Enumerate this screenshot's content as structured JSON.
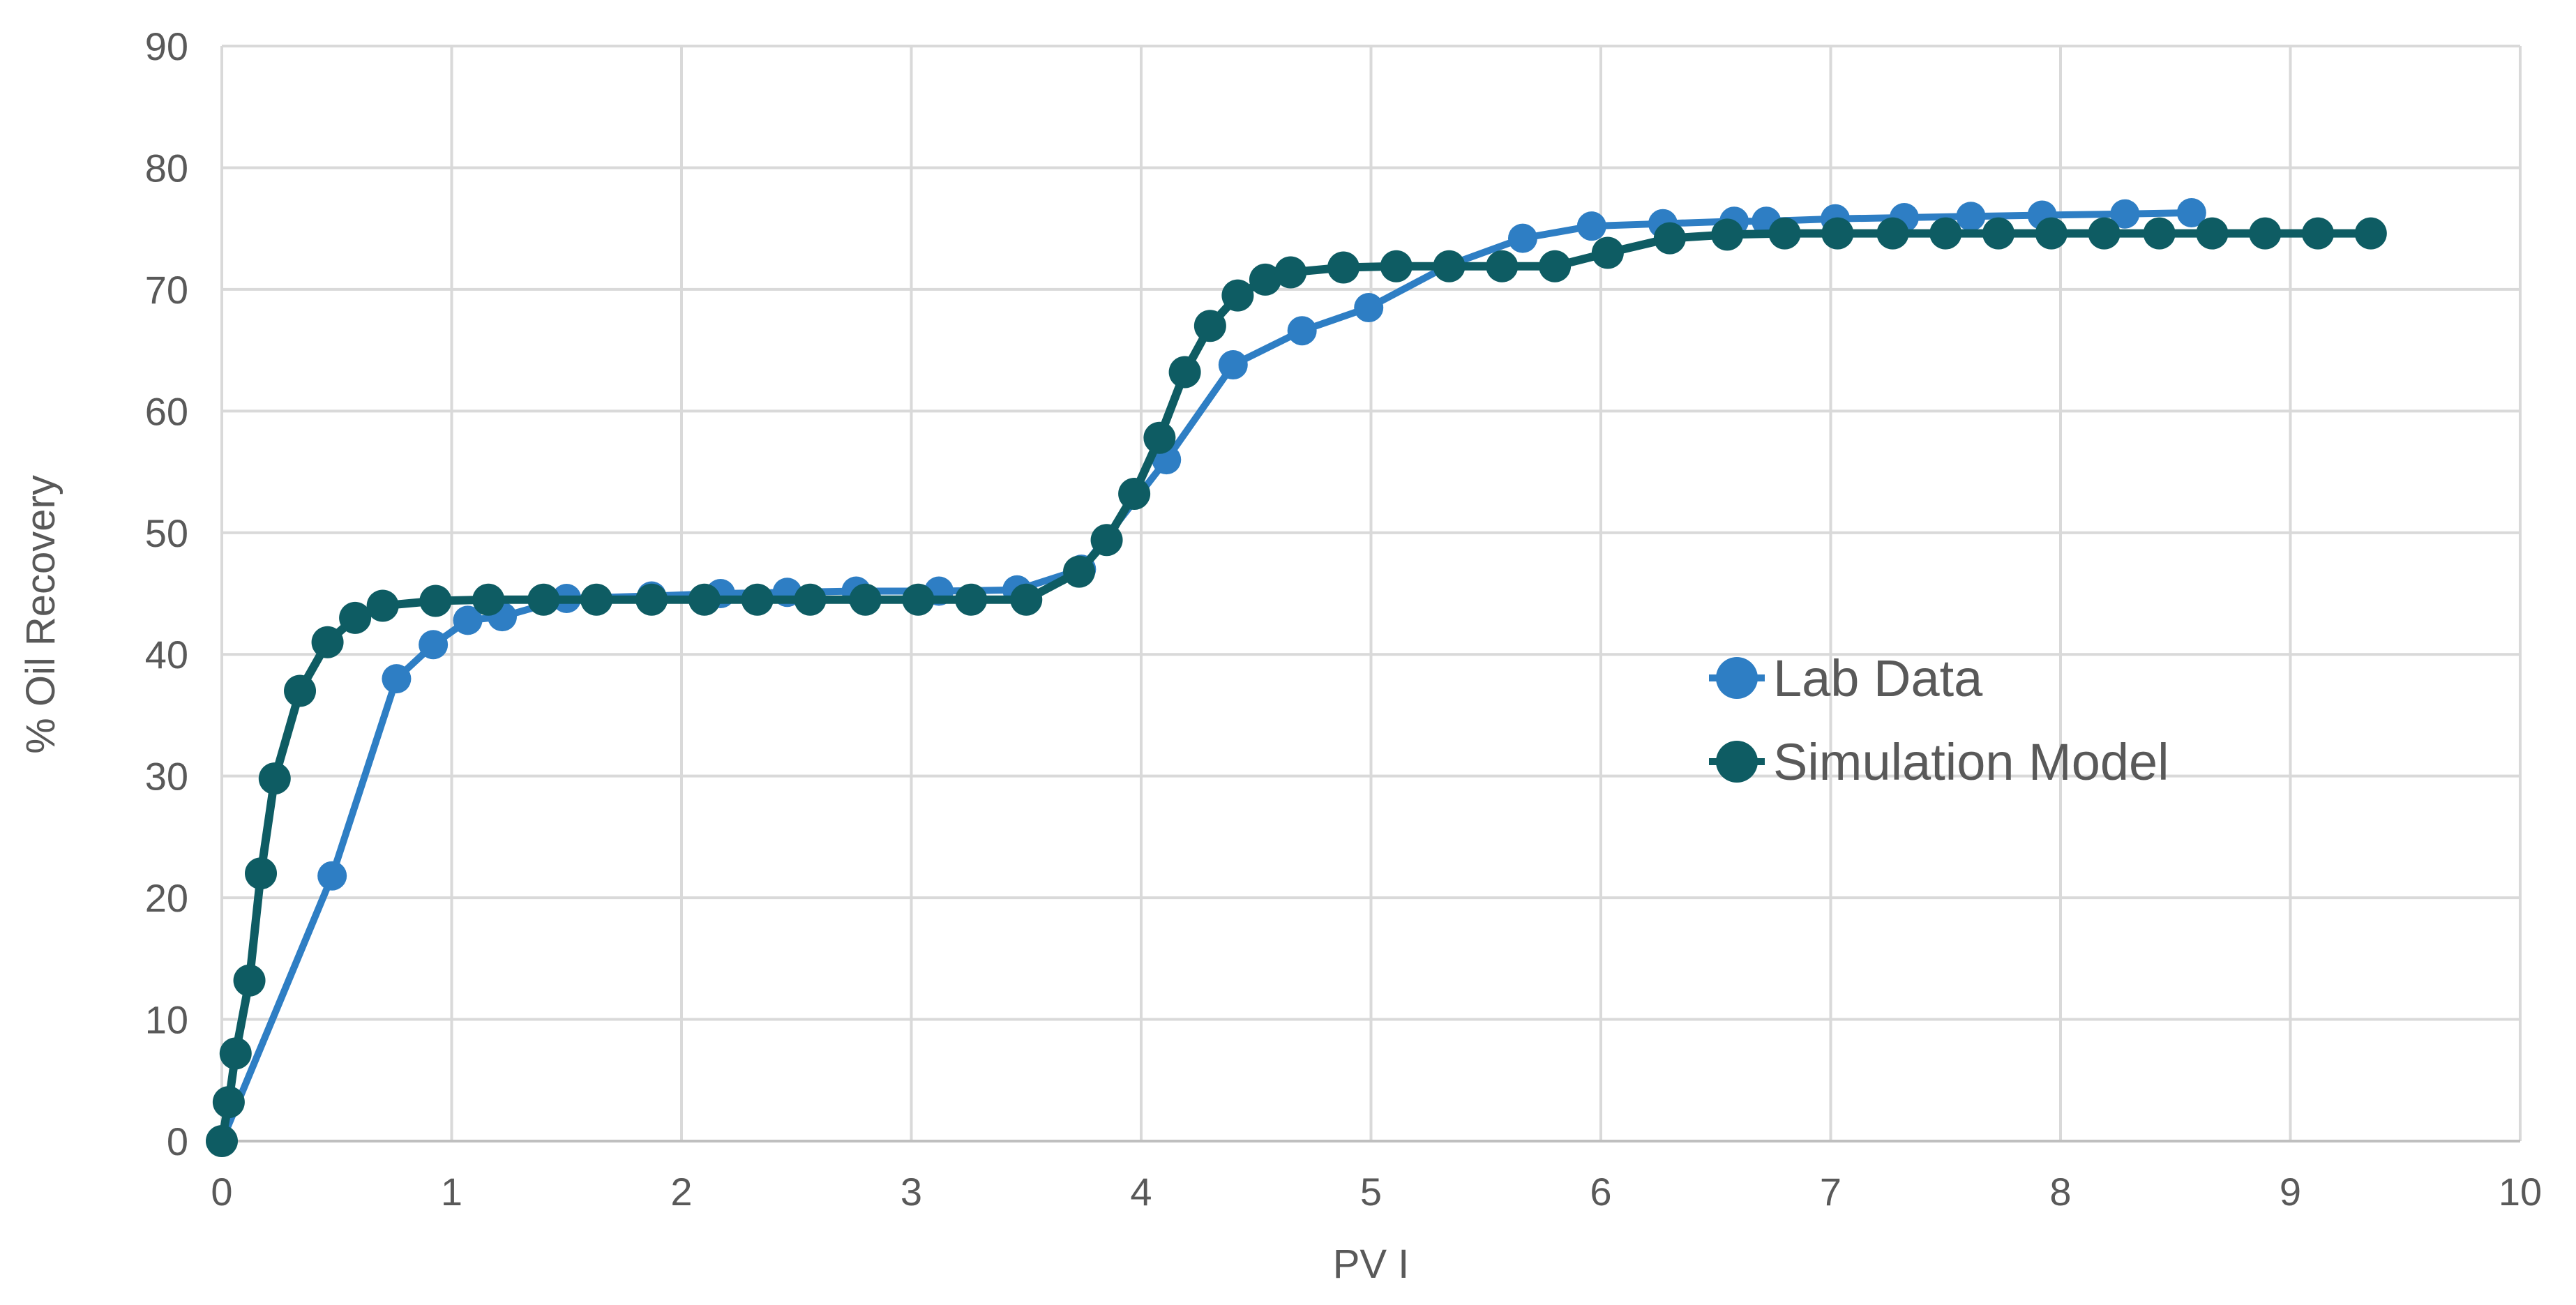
{
  "chart_data": {
    "type": "line",
    "title": "",
    "xlabel": "PV I",
    "ylabel": "% Oil Recovery",
    "xlim": [
      0,
      10
    ],
    "ylim": [
      0,
      90
    ],
    "x_ticks": [
      0,
      1,
      2,
      3,
      4,
      5,
      6,
      7,
      8,
      9,
      10
    ],
    "y_ticks": [
      0,
      10,
      20,
      30,
      40,
      50,
      60,
      70,
      80,
      90
    ],
    "grid": true,
    "legend_position": "center-right",
    "series": [
      {
        "name": "Lab Data",
        "color": "#2E7EC4",
        "marker": "circle",
        "x": [
          0.0,
          0.48,
          0.76,
          0.92,
          1.07,
          1.22,
          1.5,
          1.87,
          2.17,
          2.46,
          2.76,
          3.12,
          3.46,
          3.74,
          4.11,
          4.4,
          4.7,
          4.99,
          5.34,
          5.66,
          5.96,
          6.27,
          6.58,
          6.72,
          7.02,
          7.32,
          7.61,
          7.92,
          8.28,
          8.57
        ],
        "y": [
          0.0,
          21.8,
          38.0,
          40.8,
          42.8,
          43.1,
          44.6,
          44.8,
          45.0,
          45.1,
          45.2,
          45.2,
          45.3,
          47.0,
          56.0,
          63.8,
          66.6,
          68.5,
          72.0,
          74.2,
          75.2,
          75.4,
          75.6,
          75.6,
          75.8,
          75.9,
          76.0,
          76.1,
          76.2,
          76.3
        ]
      },
      {
        "name": "Simulation Model",
        "color": "#0E5C63",
        "marker": "circle",
        "x": [
          0.0,
          0.03,
          0.06,
          0.12,
          0.17,
          0.23,
          0.34,
          0.46,
          0.58,
          0.7,
          0.93,
          1.16,
          1.4,
          1.63,
          1.87,
          2.1,
          2.33,
          2.56,
          2.8,
          3.03,
          3.26,
          3.5,
          3.73,
          3.85,
          3.97,
          4.08,
          4.19,
          4.3,
          4.42,
          4.54,
          4.65,
          4.88,
          5.11,
          5.34,
          5.57,
          5.8,
          6.03,
          6.3,
          6.55,
          6.8,
          7.03,
          7.27,
          7.5,
          7.73,
          7.96,
          8.19,
          8.43,
          8.66,
          8.89,
          9.12,
          9.35
        ],
        "y": [
          0.0,
          3.2,
          7.2,
          13.2,
          22.0,
          29.8,
          37.0,
          41.0,
          43.0,
          44.0,
          44.4,
          44.5,
          44.5,
          44.5,
          44.5,
          44.5,
          44.5,
          44.5,
          44.5,
          44.5,
          44.5,
          44.5,
          46.8,
          49.4,
          53.2,
          57.8,
          63.2,
          67.0,
          69.5,
          70.8,
          71.4,
          71.8,
          71.9,
          71.9,
          71.9,
          71.9,
          73.0,
          74.2,
          74.5,
          74.6,
          74.6,
          74.6,
          74.6,
          74.6,
          74.6,
          74.6,
          74.6,
          74.6,
          74.6,
          74.6,
          74.6
        ]
      }
    ]
  }
}
